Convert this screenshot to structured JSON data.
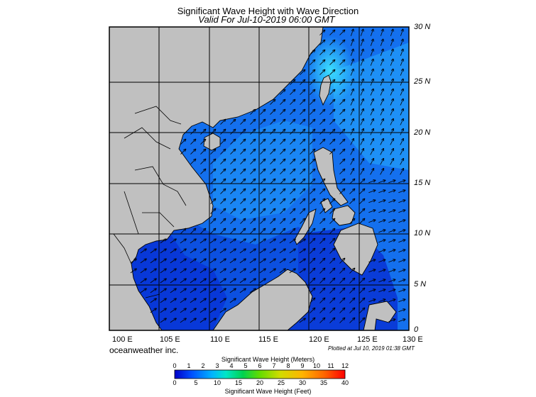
{
  "header": {
    "title": "Significant Wave Height with Wave Direction",
    "subtitle": "Valid For Jul-10-2019 06:00 GMT"
  },
  "map": {
    "lat_labels": [
      "30 N",
      "25 N",
      "20 N",
      "15 N",
      "10 N",
      "5 N",
      "0"
    ],
    "lon_labels": [
      "100 E",
      "105 E",
      "110 E",
      "115 E",
      "120 E",
      "125 E",
      "130 E"
    ],
    "lat_range": [
      0,
      30
    ],
    "lon_range": [
      100,
      130
    ],
    "grid_step_deg": 5,
    "land_color": "#c0c0c0",
    "prevailing_wave_direction": "toward NE (southwesterly swell)"
  },
  "footer": {
    "credit": "oceanweather inc.",
    "plotted": "Plotted at Jul 10, 2019 01:38 GMT"
  },
  "colorbar": {
    "title_top": "Significant Wave Height (Meters)",
    "title_bottom": "Significant Wave Height (Feet)",
    "meters_ticks": [
      "0",
      "1",
      "2",
      "3",
      "4",
      "5",
      "6",
      "7",
      "8",
      "9",
      "10",
      "11",
      "12"
    ],
    "feet_ticks": [
      "0",
      "5",
      "10",
      "15",
      "20",
      "25",
      "30",
      "35",
      "40"
    ],
    "colors": [
      "#0000c8",
      "#0050ff",
      "#00b4ff",
      "#00e6c8",
      "#00d250",
      "#64dc00",
      "#d2dc00",
      "#ffb400",
      "#ff6400",
      "#ff0000"
    ]
  }
}
